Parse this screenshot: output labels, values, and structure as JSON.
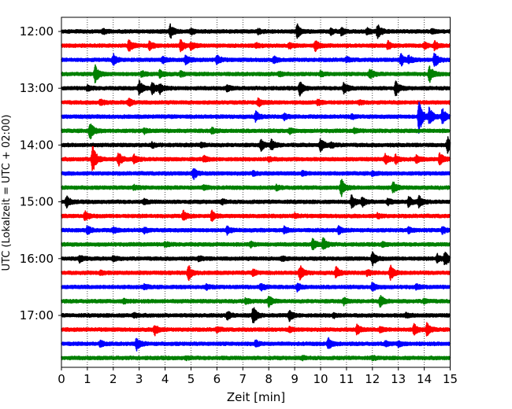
{
  "chart_data": {
    "type": "line",
    "title": "",
    "xlabel": "Zeit  [min]",
    "ylabel": "UTC (Lokalzeit = UTC + 02:00)",
    "xlim": [
      0,
      15
    ],
    "x_ticks": [
      "0",
      "1",
      "2",
      "3",
      "4",
      "5",
      "6",
      "7",
      "8",
      "9",
      "10",
      "11",
      "12",
      "13",
      "14",
      "15"
    ],
    "y_tick_labels": [
      "12:00",
      "13:00",
      "14:00",
      "15:00",
      "16:00",
      "17:00"
    ],
    "grid": "vertical dotted at each minute",
    "row_interval_min": 15,
    "row_colors": [
      "#000000",
      "#ff0000",
      "#0000ff",
      "#008000"
    ],
    "rows": [
      {
        "start": "12:00",
        "color": "#000000",
        "events": [
          [
            4.2,
            1.0
          ],
          [
            9.1,
            1.0
          ],
          [
            12.2,
            1.0
          ],
          [
            10.8,
            0.5
          ],
          [
            5.0,
            0.35
          ],
          [
            1.6,
            0.3
          ],
          [
            7.6,
            0.3
          ],
          [
            10.4,
            0.4
          ],
          [
            11.8,
            0.4
          ],
          [
            14.3,
            0.3
          ]
        ]
      },
      {
        "start": "12:15",
        "color": "#ff0000",
        "events": [
          [
            2.6,
            0.9
          ],
          [
            4.6,
            0.8
          ],
          [
            3.4,
            0.6
          ],
          [
            5.0,
            0.5
          ],
          [
            7.5,
            0.35
          ],
          [
            8.8,
            0.4
          ],
          [
            9.8,
            0.7
          ],
          [
            12.6,
            0.6
          ],
          [
            14.0,
            0.5
          ],
          [
            14.4,
            0.6
          ]
        ]
      },
      {
        "start": "12:30",
        "color": "#0000ff",
        "events": [
          [
            2.0,
            0.8
          ],
          [
            3.9,
            0.4
          ],
          [
            4.8,
            0.6
          ],
          [
            6.0,
            0.7
          ],
          [
            8.2,
            0.4
          ],
          [
            13.1,
            0.9
          ],
          [
            13.4,
            0.5
          ],
          [
            14.4,
            1.1
          ],
          [
            11.0,
            0.3
          ]
        ]
      },
      {
        "start": "12:45",
        "color": "#008000",
        "events": [
          [
            1.3,
            1.3
          ],
          [
            3.1,
            0.4
          ],
          [
            3.8,
            0.5
          ],
          [
            4.6,
            0.3
          ],
          [
            8.4,
            0.3
          ],
          [
            11.9,
            0.7
          ],
          [
            14.2,
            1.2
          ],
          [
            10.0,
            0.3
          ]
        ]
      },
      {
        "start": "13:00",
        "color": "#000000",
        "events": [
          [
            3.0,
            1.1
          ],
          [
            3.5,
            0.9
          ],
          [
            3.8,
            0.7
          ],
          [
            9.2,
            1.0
          ],
          [
            10.9,
            0.8
          ],
          [
            12.9,
            1.1
          ],
          [
            6.4,
            0.4
          ],
          [
            1.0,
            0.3
          ]
        ]
      },
      {
        "start": "13:15",
        "color": "#ff0000",
        "events": [
          [
            1.5,
            0.4
          ],
          [
            2.6,
            0.5
          ],
          [
            7.6,
            0.6
          ],
          [
            9.9,
            0.4
          ],
          [
            11.5,
            0.3
          ]
        ]
      },
      {
        "start": "13:30",
        "color": "#0000ff",
        "events": [
          [
            7.5,
            0.7
          ],
          [
            8.6,
            0.4
          ],
          [
            13.8,
            2.7
          ],
          [
            14.2,
            1.3
          ],
          [
            14.7,
            1.2
          ],
          [
            11.2,
            0.3
          ]
        ]
      },
      {
        "start": "13:45",
        "color": "#008000",
        "events": [
          [
            1.1,
            1.3
          ],
          [
            3.2,
            0.3
          ],
          [
            5.8,
            0.4
          ],
          [
            8.8,
            0.4
          ],
          [
            11.3,
            0.3
          ]
        ]
      },
      {
        "start": "14:00",
        "color": "#000000",
        "events": [
          [
            7.7,
            0.8
          ],
          [
            8.1,
            0.8
          ],
          [
            10.0,
            0.9
          ],
          [
            10.4,
            0.4
          ],
          [
            14.9,
            1.2
          ],
          [
            3.5,
            0.3
          ],
          [
            5.4,
            0.3
          ]
        ]
      },
      {
        "start": "14:15",
        "color": "#ff0000",
        "events": [
          [
            1.2,
            2.3
          ],
          [
            2.2,
            1.0
          ],
          [
            2.8,
            0.6
          ],
          [
            5.5,
            0.4
          ],
          [
            12.5,
            0.7
          ],
          [
            12.9,
            0.6
          ],
          [
            13.7,
            0.5
          ],
          [
            14.6,
            0.9
          ],
          [
            8.0,
            0.3
          ]
        ]
      },
      {
        "start": "14:30",
        "color": "#0000ff",
        "events": [
          [
            5.1,
            0.8
          ],
          [
            7.4,
            0.3
          ],
          [
            9.3,
            0.3
          ],
          [
            12.0,
            0.3
          ]
        ]
      },
      {
        "start": "14:45",
        "color": "#008000",
        "events": [
          [
            10.8,
            1.3
          ],
          [
            12.8,
            0.8
          ],
          [
            2.8,
            0.3
          ],
          [
            5.5,
            0.3
          ],
          [
            8.3,
            0.3
          ]
        ]
      },
      {
        "start": "15:00",
        "color": "#000000",
        "events": [
          [
            0.2,
            0.8
          ],
          [
            11.2,
            0.9
          ],
          [
            11.6,
            0.7
          ],
          [
            13.4,
            0.8
          ],
          [
            13.8,
            0.8
          ],
          [
            12.6,
            0.4
          ],
          [
            3.2,
            0.3
          ],
          [
            6.2,
            0.3
          ]
        ]
      },
      {
        "start": "15:15",
        "color": "#ff0000",
        "events": [
          [
            0.9,
            0.7
          ],
          [
            4.7,
            0.7
          ],
          [
            5.8,
            0.7
          ],
          [
            9.0,
            0.3
          ],
          [
            12.2,
            0.3
          ]
        ]
      },
      {
        "start": "15:30",
        "color": "#0000ff",
        "events": [
          [
            1.0,
            0.6
          ],
          [
            2.0,
            0.4
          ],
          [
            3.2,
            0.4
          ],
          [
            6.4,
            0.5
          ],
          [
            8.6,
            0.4
          ],
          [
            10.7,
            0.5
          ],
          [
            13.4,
            0.4
          ],
          [
            14.7,
            0.5
          ]
        ]
      },
      {
        "start": "15:45",
        "color": "#008000",
        "events": [
          [
            9.7,
            0.8
          ],
          [
            10.1,
            0.9
          ],
          [
            4.0,
            0.3
          ],
          [
            7.3,
            0.3
          ],
          [
            12.4,
            0.3
          ]
        ]
      },
      {
        "start": "16:00",
        "color": "#000000",
        "events": [
          [
            0.7,
            0.6
          ],
          [
            12.0,
            1.0
          ],
          [
            14.8,
            1.1
          ],
          [
            14.5,
            0.6
          ],
          [
            2.0,
            0.3
          ],
          [
            5.3,
            0.3
          ],
          [
            8.5,
            0.3
          ]
        ]
      },
      {
        "start": "16:15",
        "color": "#ff0000",
        "events": [
          [
            4.9,
            1.1
          ],
          [
            9.2,
            1.1
          ],
          [
            10.6,
            0.8
          ],
          [
            12.7,
            1.0
          ],
          [
            7.4,
            0.4
          ],
          [
            1.5,
            0.3
          ],
          [
            11.8,
            0.4
          ]
        ]
      },
      {
        "start": "16:30",
        "color": "#0000ff",
        "events": [
          [
            7.7,
            0.5
          ],
          [
            9.1,
            0.5
          ],
          [
            12.0,
            0.6
          ],
          [
            13.7,
            0.3
          ],
          [
            3.2,
            0.3
          ],
          [
            5.6,
            0.3
          ]
        ]
      },
      {
        "start": "16:45",
        "color": "#008000",
        "events": [
          [
            7.1,
            0.4
          ],
          [
            8.0,
            0.7
          ],
          [
            10.9,
            0.5
          ],
          [
            12.3,
            0.8
          ],
          [
            14.0,
            0.3
          ],
          [
            2.4,
            0.3
          ]
        ]
      },
      {
        "start": "17:00",
        "color": "#000000",
        "events": [
          [
            6.4,
            0.6
          ],
          [
            7.4,
            1.3
          ],
          [
            8.8,
            0.8
          ],
          [
            2.8,
            0.3
          ],
          [
            10.5,
            0.3
          ],
          [
            13.3,
            0.3
          ]
        ]
      },
      {
        "start": "17:15",
        "color": "#ff0000",
        "events": [
          [
            3.6,
            0.8
          ],
          [
            11.4,
            0.7
          ],
          [
            13.6,
            0.8
          ],
          [
            14.1,
            0.9
          ],
          [
            12.3,
            0.4
          ],
          [
            6.0,
            0.3
          ],
          [
            8.8,
            0.3
          ]
        ]
      },
      {
        "start": "17:30",
        "color": "#0000ff",
        "events": [
          [
            2.9,
            0.9
          ],
          [
            10.3,
            0.8
          ],
          [
            1.5,
            0.4
          ],
          [
            7.5,
            0.4
          ],
          [
            13.0,
            0.4
          ],
          [
            12.5,
            0.3
          ]
        ]
      },
      {
        "start": "17:45",
        "color": "#008000",
        "events": [
          [
            4.8,
            0.2
          ],
          [
            9.3,
            0.2
          ],
          [
            12.0,
            0.2
          ]
        ]
      }
    ]
  }
}
